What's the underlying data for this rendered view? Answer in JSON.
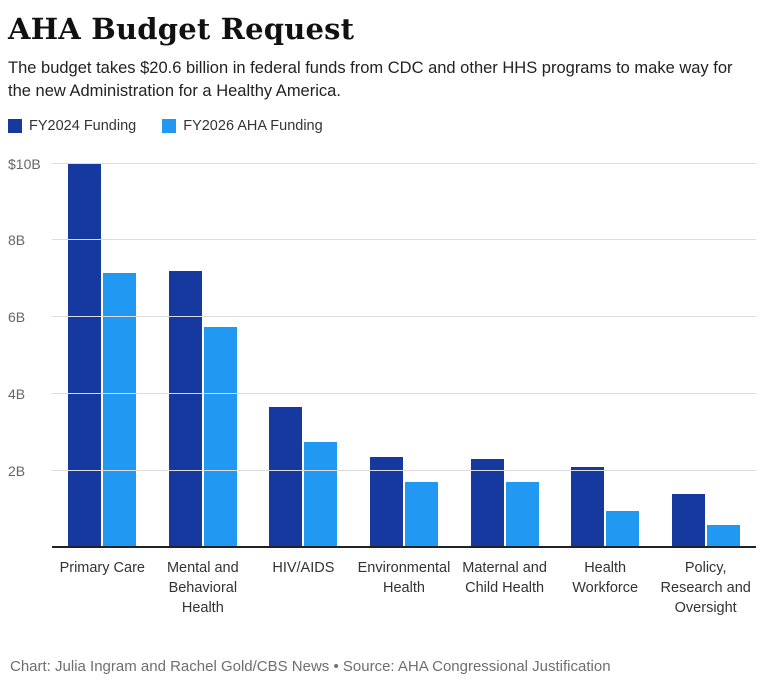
{
  "header": {
    "title": "AHA Budget Request",
    "subtitle": "The budget takes $20.6 billion in federal funds from CDC and other HHS programs to make way for the new Administration for a Healthy America."
  },
  "legend": [
    {
      "label": "FY2024 Funding",
      "color": "#1639a0"
    },
    {
      "label": "FY2026 AHA Funding",
      "color": "#2199f2"
    }
  ],
  "chart_data": {
    "type": "bar",
    "title": "AHA Budget Request",
    "categories": [
      "Primary Care",
      "Mental and Behavioral Health",
      "HIV/AIDS",
      "Environmental Health",
      "Maternal and Child Health",
      "Health Workforce",
      "Policy, Research and Oversight"
    ],
    "series": [
      {
        "name": "FY2024 Funding",
        "color": "#1639a0",
        "values": [
          10.0,
          7.2,
          3.65,
          2.35,
          2.3,
          2.1,
          1.4
        ]
      },
      {
        "name": "FY2026 AHA Funding",
        "color": "#2199f2",
        "values": [
          7.15,
          5.75,
          2.75,
          1.7,
          1.7,
          0.95,
          0.6
        ]
      }
    ],
    "ylim": [
      0,
      10
    ],
    "yticks": [
      {
        "value": 10,
        "label": "$10B"
      },
      {
        "value": 8,
        "label": "8B"
      },
      {
        "value": 6,
        "label": "6B"
      },
      {
        "value": 4,
        "label": "4B"
      },
      {
        "value": 2,
        "label": "2B"
      }
    ],
    "unit": "billions USD",
    "grid": true,
    "legend_position": "top"
  },
  "footer": {
    "credit": "Chart: Julia Ingram and Rachel Gold/CBS News • Source: AHA Congressional Justification"
  }
}
